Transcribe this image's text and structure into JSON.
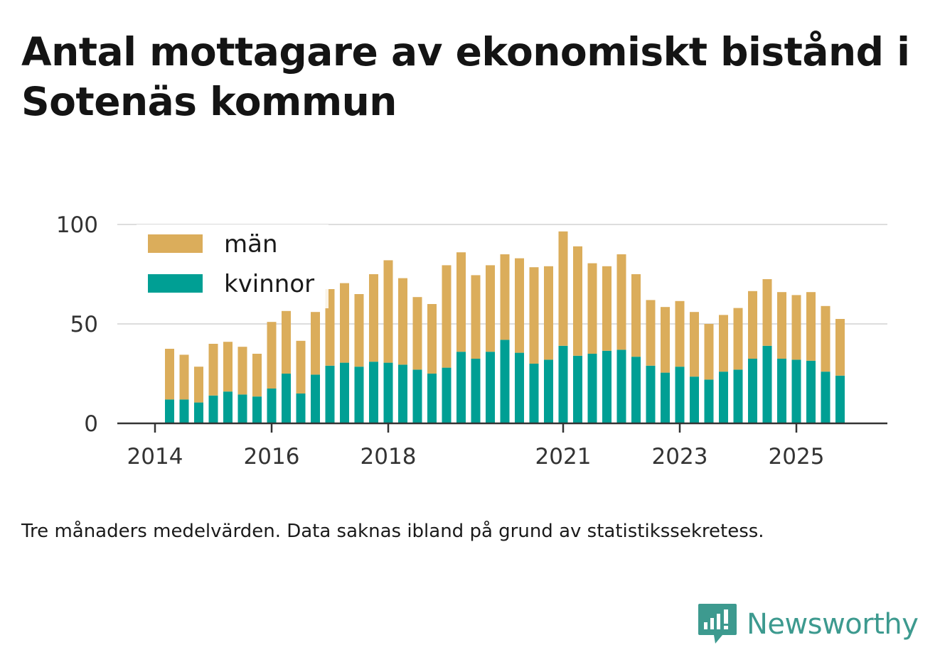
{
  "title": "Antal mottagare av ekonomiskt bistånd i Sotenäs kommun",
  "note": "Tre månaders medelvärden. Data saknas ibland på grund av statistikssekretess.",
  "brand": {
    "name": "Newsworthy",
    "icon": "newsworthy-logo-icon",
    "color": "#3d9a8f"
  },
  "chart_data": {
    "type": "bar",
    "stacked": true,
    "xlabel": "",
    "ylabel": "",
    "ylim": [
      0,
      100
    ],
    "yticks": [
      0,
      50,
      100
    ],
    "grid": true,
    "legend_position": "top-left",
    "xticks": [
      {
        "label": "2014",
        "pos": 0
      },
      {
        "label": "2016",
        "pos": 8
      },
      {
        "label": "2018",
        "pos": 16
      },
      {
        "label": "2021",
        "pos": 28
      },
      {
        "label": "2023",
        "pos": 36
      },
      {
        "label": "2025",
        "pos": 44
      }
    ],
    "bar_start_pos": 1,
    "series": [
      {
        "name": "kvinnor",
        "color": "#009f94",
        "values": [
          12,
          12,
          10.5,
          14,
          16,
          14.5,
          13.5,
          17.5,
          25,
          15,
          24.5,
          29,
          30.5,
          28.5,
          31,
          30.5,
          29.5,
          27,
          25,
          28,
          36,
          32.5,
          36,
          42,
          35.5,
          30,
          32,
          39,
          34,
          35,
          36.5,
          37,
          33.5,
          29,
          25.5,
          28.5,
          23.5,
          22,
          26,
          27,
          32.5,
          39,
          32.5,
          32,
          31.5,
          26,
          24
        ]
      },
      {
        "name": "män",
        "color": "#dbad5b",
        "values": [
          25.5,
          22.5,
          18,
          26,
          25,
          24,
          21.5,
          33.5,
          31.5,
          26.5,
          31.5,
          38.5,
          40,
          36.5,
          44,
          51.5,
          43.5,
          36.5,
          35,
          51.5,
          50,
          42,
          43.5,
          43,
          47.5,
          48.5,
          47,
          57.5,
          55,
          45.5,
          42.5,
          48,
          41.5,
          33,
          33,
          33,
          32.5,
          28,
          28.5,
          31,
          34,
          33.5,
          33.5,
          32.5,
          34.5,
          33,
          28.5
        ]
      }
    ]
  }
}
